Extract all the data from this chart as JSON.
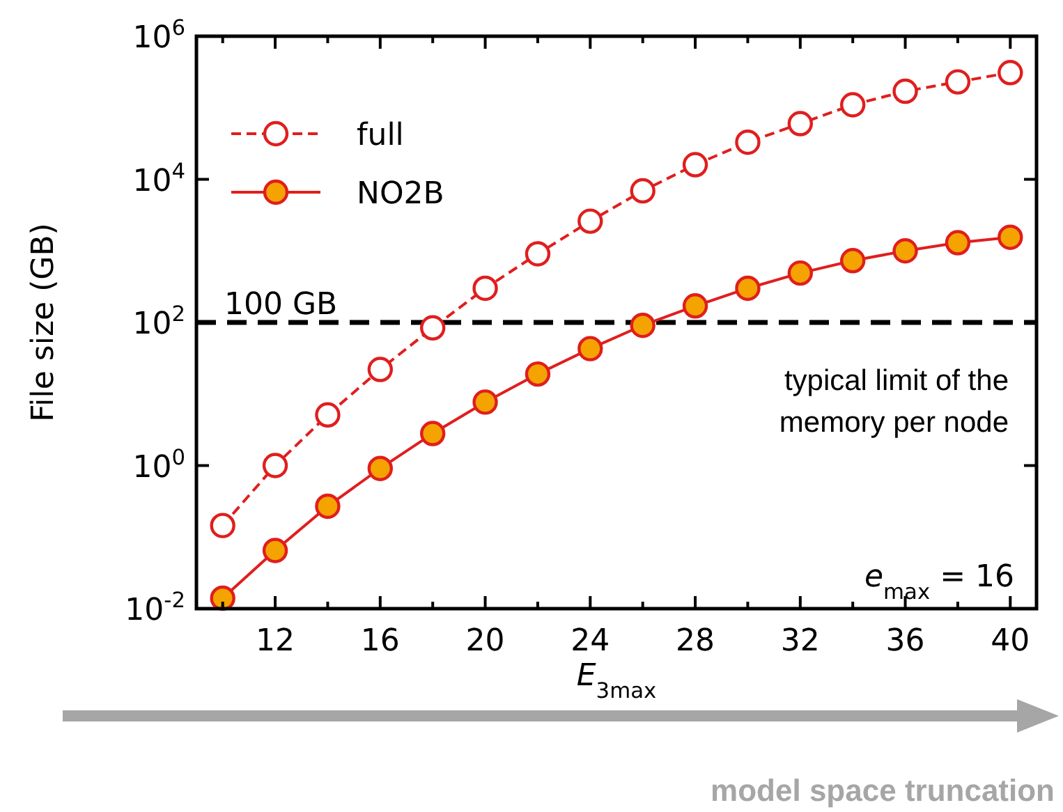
{
  "chart_data": {
    "type": "line",
    "xlabel": "E$_{3max}$",
    "ylabel": "File size (GB)",
    "x": [
      10,
      12,
      14,
      16,
      18,
      20,
      22,
      24,
      26,
      28,
      30,
      32,
      34,
      36,
      38,
      40
    ],
    "series": [
      {
        "name": "full",
        "color": "#e01e1e",
        "line_style": "dashed",
        "values": [
          0.145,
          1,
          5.1,
          22,
          84,
          300,
          910,
          2600,
          6900,
          16000,
          33000,
          60000,
          110000,
          170000,
          230000,
          310000
        ]
      },
      {
        "name": "NO2B",
        "color": "#e01e1e",
        "line_style": "solid",
        "colors": [
          "#f5a300",
          "#f5a300",
          "#f5a300",
          "#f5a300",
          "#f5a300",
          "#f5a300",
          "#f5a300",
          "#f5a300",
          "#f5a300",
          "#f5a300",
          "#f5a300",
          "#f5a300",
          "#f5a300",
          "#f5a300",
          "#f5a300",
          "#f5a300"
        ],
        "values": [
          0.014,
          0.065,
          0.27,
          0.91,
          2.8,
          7.7,
          19,
          43,
          91,
          170,
          300,
          490,
          730,
          1000,
          1300,
          1550
        ]
      }
    ],
    "log": "y",
    "xlim": [
      9,
      41
    ],
    "ylim": [
      0.01,
      1000000
    ],
    "xticks": [
      {
        "value": 10,
        "label": null
      },
      12,
      {
        "value": 14,
        "label": null
      },
      16,
      {
        "value": 18,
        "label": null
      },
      20,
      {
        "value": 22,
        "label": null
      },
      24,
      {
        "value": 26,
        "label": null
      },
      28,
      {
        "value": 30,
        "label": null
      },
      32,
      {
        "value": 34,
        "label": null
      },
      36,
      {
        "value": 38,
        "label": null
      },
      40
    ],
    "yticks": [
      {
        "value": 0.01,
        "label": "10$^{-2}$"
      },
      {
        "value": 1,
        "label": "10$^{0}$"
      },
      {
        "value": 100,
        "label": "10$^{2}$"
      },
      {
        "value": 10000,
        "label": "10$^{4}$"
      },
      {
        "value": 1000000,
        "label": "10$^{6}$"
      }
    ],
    "ref_lines": [
      {
        "axis": "y",
        "value": 100,
        "label": "100 GB",
        "color": "#000000",
        "line_style": "dashed"
      }
    ],
    "annotations": [
      "typical limit of the memory per node",
      "e$_{max}$ = 16",
      "model space truncation"
    ],
    "marker": "circle",
    "legend": "top left",
    "grid": false
  }
}
